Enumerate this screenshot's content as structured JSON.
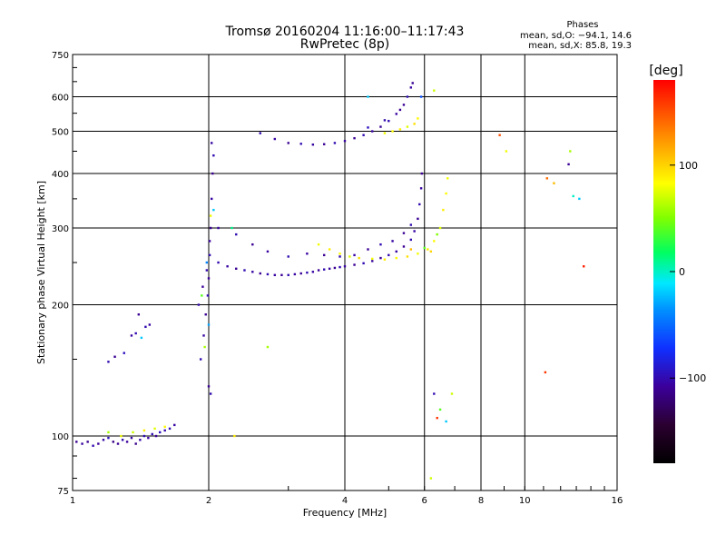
{
  "header": {
    "title": "Tromsø 20160204 11:16:00–11:17:43",
    "subtitle": "RwPretec (8p)",
    "stats_title": "Phases",
    "stats_o": "mean, sd,O: −94.1, 14.6",
    "stats_x": "mean, sd,X:  85.8, 19.3"
  },
  "colorbar": {
    "label": "[deg]",
    "min": -180,
    "max": 180,
    "ticks": [
      -100,
      0,
      100
    ],
    "tick_labels": [
      "−100",
      "0",
      "100"
    ]
  },
  "chart_data": {
    "type": "scatter",
    "xlabel": "Frequency [MHz]",
    "ylabel": "Stationary phase Virtual Height [km]",
    "x_scale": "log2",
    "y_scale": "log",
    "xlim": [
      1,
      16
    ],
    "ylim": [
      75,
      750
    ],
    "x_ticks": [
      1,
      2,
      4,
      6,
      8,
      10,
      16
    ],
    "x_tick_labels": [
      "1",
      "2",
      "4",
      "6",
      "8",
      "10",
      "16"
    ],
    "y_ticks": [
      75,
      100,
      200,
      300,
      400,
      500,
      600,
      750
    ],
    "y_tick_labels": [
      "75",
      "100",
      "200",
      "300",
      "400",
      "500",
      "600",
      "750"
    ],
    "grid": true,
    "color_by": "phase_deg",
    "points": [
      [
        1.02,
        97,
        -110
      ],
      [
        1.05,
        96,
        -105
      ],
      [
        1.08,
        97,
        -112
      ],
      [
        1.11,
        95,
        -100
      ],
      [
        1.14,
        96,
        -108
      ],
      [
        1.17,
        98,
        -103
      ],
      [
        1.2,
        99,
        -95
      ],
      [
        1.23,
        97,
        -115
      ],
      [
        1.26,
        96,
        -110
      ],
      [
        1.29,
        98,
        -100
      ],
      [
        1.32,
        97,
        -108
      ],
      [
        1.35,
        99,
        -104
      ],
      [
        1.38,
        96,
        -112
      ],
      [
        1.41,
        98,
        -102
      ],
      [
        1.44,
        100,
        -98
      ],
      [
        1.47,
        99,
        -106
      ],
      [
        1.5,
        101,
        -100
      ],
      [
        1.53,
        100,
        -110
      ],
      [
        1.56,
        102,
        -95
      ],
      [
        1.6,
        103,
        -102
      ],
      [
        1.64,
        104,
        -98
      ],
      [
        1.68,
        106,
        -105
      ],
      [
        1.2,
        102,
        60
      ],
      [
        1.28,
        100,
        80
      ],
      [
        1.36,
        102,
        70
      ],
      [
        1.44,
        103,
        90
      ],
      [
        1.52,
        104,
        75
      ],
      [
        1.6,
        105,
        85
      ],
      [
        1.2,
        148,
        -100
      ],
      [
        1.24,
        152,
        -110
      ],
      [
        1.3,
        155,
        -95
      ],
      [
        1.35,
        170,
        -105
      ],
      [
        1.38,
        172,
        -100
      ],
      [
        1.4,
        190,
        -110
      ],
      [
        1.42,
        168,
        -20
      ],
      [
        1.45,
        178,
        -100
      ],
      [
        1.48,
        180,
        -105
      ],
      [
        1.92,
        150,
        -100
      ],
      [
        1.95,
        170,
        -105
      ],
      [
        1.97,
        190,
        -110
      ],
      [
        1.99,
        210,
        -100
      ],
      [
        2.0,
        230,
        -108
      ],
      [
        2.01,
        260,
        -100
      ],
      [
        2.02,
        300,
        -112
      ],
      [
        2.03,
        350,
        -105
      ],
      [
        2.04,
        400,
        -110
      ],
      [
        2.05,
        440,
        -100
      ],
      [
        2.03,
        470,
        -105
      ],
      [
        2.0,
        130,
        -110
      ],
      [
        2.02,
        125,
        -100
      ],
      [
        1.9,
        200,
        -103
      ],
      [
        1.94,
        220,
        -108
      ],
      [
        1.98,
        240,
        -102
      ],
      [
        2.01,
        280,
        -106
      ],
      [
        2.0,
        180,
        -30
      ],
      [
        1.96,
        160,
        60
      ],
      [
        1.93,
        210,
        40
      ],
      [
        2.05,
        330,
        -20
      ],
      [
        2.02,
        320,
        80
      ],
      [
        1.98,
        250,
        -40
      ],
      [
        2.1,
        250,
        -100
      ],
      [
        2.2,
        245,
        -105
      ],
      [
        2.3,
        242,
        -110
      ],
      [
        2.4,
        240,
        -100
      ],
      [
        2.5,
        238,
        -105
      ],
      [
        2.6,
        236,
        -110
      ],
      [
        2.7,
        235,
        -100
      ],
      [
        2.8,
        234,
        -105
      ],
      [
        2.9,
        234,
        -110
      ],
      [
        3.0,
        234,
        -100
      ],
      [
        3.1,
        235,
        -105
      ],
      [
        3.2,
        236,
        -110
      ],
      [
        3.3,
        237,
        -100
      ],
      [
        3.4,
        238,
        -105
      ],
      [
        3.5,
        240,
        -110
      ],
      [
        3.6,
        241,
        -100
      ],
      [
        3.7,
        242,
        -105
      ],
      [
        3.8,
        243,
        -110
      ],
      [
        3.9,
        244,
        -100
      ],
      [
        4.0,
        245,
        -105
      ],
      [
        4.2,
        247,
        -110
      ],
      [
        4.4,
        249,
        -100
      ],
      [
        4.6,
        252,
        -105
      ],
      [
        4.8,
        256,
        -110
      ],
      [
        5.0,
        260,
        -100
      ],
      [
        5.2,
        265,
        -105
      ],
      [
        5.4,
        272,
        -110
      ],
      [
        5.6,
        282,
        -100
      ],
      [
        5.7,
        295,
        -105
      ],
      [
        5.8,
        315,
        -110
      ],
      [
        5.85,
        340,
        -100
      ],
      [
        5.9,
        370,
        -105
      ],
      [
        5.92,
        400,
        -110
      ],
      [
        2.1,
        300,
        -105
      ],
      [
        2.3,
        290,
        -100
      ],
      [
        2.5,
        275,
        -110
      ],
      [
        2.7,
        265,
        -105
      ],
      [
        3.0,
        258,
        -100
      ],
      [
        3.3,
        262,
        -105
      ],
      [
        3.6,
        260,
        -110
      ],
      [
        3.9,
        258,
        -100
      ],
      [
        4.2,
        260,
        -105
      ],
      [
        4.5,
        268,
        -110
      ],
      [
        4.8,
        275,
        -100
      ],
      [
        5.1,
        280,
        -105
      ],
      [
        5.4,
        292,
        -110
      ],
      [
        5.6,
        305,
        -100
      ],
      [
        3.5,
        275,
        80
      ],
      [
        3.7,
        268,
        90
      ],
      [
        3.9,
        262,
        85
      ],
      [
        4.1,
        258,
        75
      ],
      [
        4.3,
        256,
        95
      ],
      [
        4.6,
        255,
        80
      ],
      [
        4.9,
        254,
        90
      ],
      [
        5.2,
        256,
        85
      ],
      [
        5.5,
        258,
        95
      ],
      [
        5.8,
        262,
        80
      ],
      [
        6.1,
        268,
        90
      ],
      [
        6.3,
        280,
        85
      ],
      [
        6.5,
        300,
        75
      ],
      [
        6.6,
        330,
        90
      ],
      [
        6.7,
        360,
        85
      ],
      [
        6.75,
        390,
        80
      ],
      [
        6.2,
        265,
        100
      ],
      [
        6.0,
        270,
        40
      ],
      [
        5.6,
        268,
        110
      ],
      [
        6.4,
        290,
        50
      ],
      [
        2.6,
        495,
        -100
      ],
      [
        2.8,
        480,
        -105
      ],
      [
        3.0,
        470,
        -110
      ],
      [
        3.2,
        468,
        -100
      ],
      [
        3.4,
        466,
        -105
      ],
      [
        3.6,
        467,
        -110
      ],
      [
        3.8,
        470,
        -100
      ],
      [
        4.0,
        475,
        -105
      ],
      [
        4.2,
        482,
        -110
      ],
      [
        4.4,
        490,
        -100
      ],
      [
        4.6,
        500,
        -105
      ],
      [
        4.8,
        512,
        -110
      ],
      [
        5.0,
        528,
        -100
      ],
      [
        5.2,
        548,
        -105
      ],
      [
        5.4,
        575,
        -110
      ],
      [
        5.5,
        600,
        -100
      ],
      [
        5.6,
        630,
        -105
      ],
      [
        5.65,
        645,
        -110
      ],
      [
        4.5,
        510,
        -95
      ],
      [
        4.9,
        530,
        -100
      ],
      [
        5.3,
        560,
        -110
      ],
      [
        4.9,
        495,
        80
      ],
      [
        5.1,
        500,
        85
      ],
      [
        5.3,
        505,
        90
      ],
      [
        5.5,
        512,
        75
      ],
      [
        5.7,
        520,
        95
      ],
      [
        5.8,
        535,
        85
      ],
      [
        6.3,
        620,
        70
      ],
      [
        5.9,
        600,
        -60
      ],
      [
        4.5,
        600,
        -20
      ],
      [
        6.2,
        80,
        70
      ],
      [
        6.3,
        125,
        -100
      ],
      [
        6.5,
        115,
        40
      ],
      [
        6.9,
        125,
        70
      ],
      [
        6.4,
        110,
        160
      ],
      [
        6.7,
        108,
        -20
      ],
      [
        8.8,
        490,
        150
      ],
      [
        9.1,
        450,
        80
      ],
      [
        11.2,
        390,
        140
      ],
      [
        11.6,
        380,
        110
      ],
      [
        12.5,
        420,
        -110
      ],
      [
        12.6,
        450,
        60
      ],
      [
        13.2,
        350,
        -20
      ],
      [
        12.8,
        355,
        0
      ],
      [
        13.5,
        245,
        170
      ],
      [
        11.1,
        140,
        160
      ],
      [
        2.25,
        300,
        10
      ],
      [
        2.7,
        160,
        60
      ],
      [
        2.28,
        100,
        90
      ]
    ]
  }
}
